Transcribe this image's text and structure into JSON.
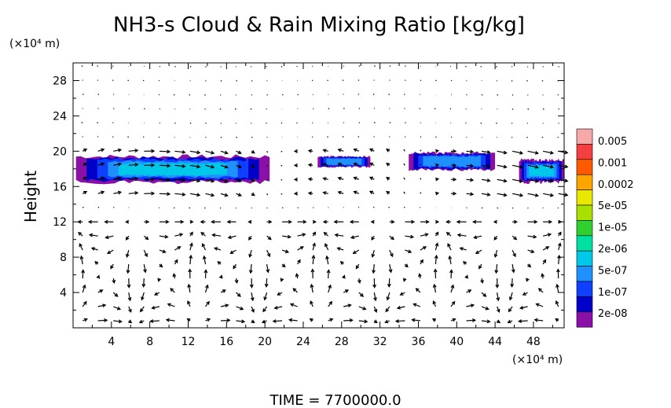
{
  "chart_data": {
    "type": "heatmap",
    "title": "NH3-s Cloud & Rain Mixing Ratio [kg/kg]",
    "ylabel": "Height",
    "y_unit_label": "(×10⁴ m)",
    "x_unit_label": "(×10⁴ m)",
    "footer": "TIME  =  7700000.0",
    "xlim": [
      0,
      51.2
    ],
    "ylim": [
      0,
      30
    ],
    "x_ticks": [
      "4",
      "8",
      "12",
      "16",
      "20",
      "24",
      "28",
      "32",
      "36",
      "40",
      "44",
      "48"
    ],
    "x_tick_values": [
      4,
      8,
      12,
      16,
      20,
      24,
      28,
      32,
      36,
      40,
      44,
      48
    ],
    "y_ticks": [
      "4",
      "8",
      "12",
      "16",
      "20",
      "24",
      "28"
    ],
    "y_tick_values": [
      4,
      8,
      12,
      16,
      20,
      24,
      28
    ],
    "colorbar": {
      "labels": [
        "0.005",
        "0.001",
        "0.0002",
        "5e-05",
        "1e-05",
        "2e-06",
        "5e-07",
        "1e-07",
        "2e-08"
      ],
      "colors": [
        "#f7a8a8",
        "#f44040",
        "#ff5a00",
        "#ffa500",
        "#e8e800",
        "#a8e000",
        "#30d030",
        "#00e0a0",
        "#00c8e8",
        "#1e90ff",
        "#1040ff",
        "#0000c8",
        "#8a10a8"
      ]
    },
    "cloud_regions": [
      {
        "x0": 0.3,
        "x1": 20.5,
        "y_base": 16.5,
        "y_top": 19.4,
        "peak_level": "2e-06"
      },
      {
        "x0": 25.5,
        "x1": 31.0,
        "y_base": 18.2,
        "y_top": 19.4,
        "peak_level": "5e-07"
      },
      {
        "x0": 35.0,
        "x1": 44.0,
        "y_base": 17.9,
        "y_top": 19.8,
        "peak_level": "5e-07"
      },
      {
        "x0": 46.5,
        "x1": 51.2,
        "y_base": 16.5,
        "y_top": 19.0,
        "peak_level": "2e-06"
      }
    ]
  }
}
